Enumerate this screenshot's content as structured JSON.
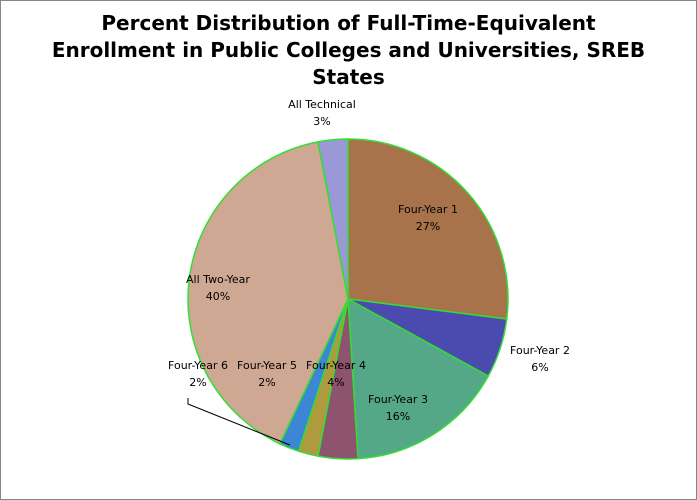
{
  "chart_data": {
    "type": "pie",
    "title_lines": [
      "Percent Distribution of Full-Time-Equivalent",
      "Enrollment in Public Colleges and Universities, SREB",
      "States"
    ],
    "slices": [
      {
        "label": "Four-Year 1",
        "value": 27,
        "display": "27%",
        "color": "#A8734A"
      },
      {
        "label": "Four-Year 2",
        "value": 6,
        "display": "6%",
        "color": "#4B4BAF"
      },
      {
        "label": "Four-Year 3",
        "value": 16,
        "display": "16%",
        "color": "#55A887"
      },
      {
        "label": "Four-Year 4",
        "value": 4,
        "display": "4%",
        "color": "#8E536E"
      },
      {
        "label": "Four-Year 5",
        "value": 2,
        "display": "2%",
        "color": "#B09A40"
      },
      {
        "label": "Four-Year 6",
        "value": 2,
        "display": "2%",
        "color": "#3D86D3"
      },
      {
        "label": "All Two-Year",
        "value": 40,
        "display": "40%",
        "color": "#CFA893"
      },
      {
        "label": "All Technical",
        "value": 3,
        "display": "3%",
        "color": "#9A98D6"
      }
    ],
    "slice_border_color": "#33DD33",
    "start_angle": "12 o'clock",
    "direction": "clockwise"
  }
}
